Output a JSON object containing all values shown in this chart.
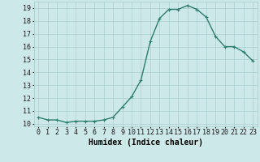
{
  "x": [
    0,
    1,
    2,
    3,
    4,
    5,
    6,
    7,
    8,
    9,
    10,
    11,
    12,
    13,
    14,
    15,
    16,
    17,
    18,
    19,
    20,
    21,
    22,
    23
  ],
  "y": [
    10.5,
    10.3,
    10.3,
    10.1,
    10.2,
    10.2,
    10.2,
    10.3,
    10.5,
    11.3,
    12.1,
    13.4,
    16.4,
    18.2,
    18.9,
    18.9,
    19.2,
    18.9,
    18.3,
    16.8,
    16.0,
    16.0,
    15.6,
    14.9
  ],
  "line_color": "#2e7d6e",
  "marker": "+",
  "marker_size": 3,
  "marker_linewidth": 0.8,
  "bg_color": "#cce8e8",
  "grid_color": "#aacfcf",
  "xlabel": "Humidex (Indice chaleur)",
  "ylim_min": 10,
  "ylim_max": 19.5,
  "xlim_min": -0.5,
  "xlim_max": 23.5,
  "ytick_values": [
    10,
    11,
    12,
    13,
    14,
    15,
    16,
    17,
    18,
    19
  ],
  "linewidth": 1.0,
  "xlabel_fontsize": 7,
  "tick_fontsize": 6
}
